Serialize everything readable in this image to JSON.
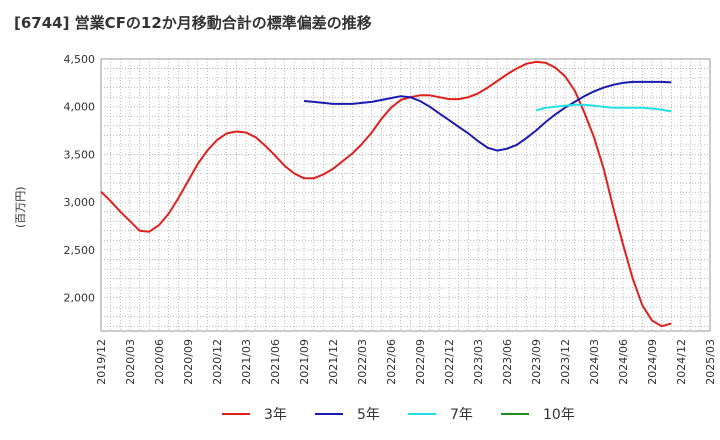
{
  "chart_data": {
    "type": "line",
    "title": "[6744]  営業CFの12か月移動合計の標準偏差の推移",
    "ylabel": "(百万円)",
    "xlabel": "",
    "ylim": [
      1650,
      4500
    ],
    "yticks": [
      2000,
      2500,
      3000,
      3500,
      4000,
      4500
    ],
    "ytick_labels": [
      "2,000",
      "2,500",
      "3,000",
      "3,500",
      "4,000",
      "4,500"
    ],
    "xticks": [
      "2019/12",
      "2020/03",
      "2020/06",
      "2020/09",
      "2020/12",
      "2021/03",
      "2021/06",
      "2021/09",
      "2021/12",
      "2022/03",
      "2022/06",
      "2022/09",
      "2022/12",
      "2023/03",
      "2023/06",
      "2023/09",
      "2023/12",
      "2024/03",
      "2024/06",
      "2024/09",
      "2024/12",
      "2025/03"
    ],
    "grid": true,
    "legend_position": "bottom",
    "series": [
      {
        "name": "3年",
        "color": "#e0201c",
        "points": [
          [
            "2019/12",
            3110
          ],
          [
            "2020/01",
            3010
          ],
          [
            "2020/02",
            2900
          ],
          [
            "2020/03",
            2800
          ],
          [
            "2020/04",
            2700
          ],
          [
            "2020/05",
            2690
          ],
          [
            "2020/06",
            2760
          ],
          [
            "2020/07",
            2880
          ],
          [
            "2020/08",
            3040
          ],
          [
            "2020/09",
            3220
          ],
          [
            "2020/10",
            3400
          ],
          [
            "2020/11",
            3540
          ],
          [
            "2020/12",
            3650
          ],
          [
            "2021/01",
            3720
          ],
          [
            "2021/02",
            3740
          ],
          [
            "2021/03",
            3730
          ],
          [
            "2021/04",
            3680
          ],
          [
            "2021/05",
            3590
          ],
          [
            "2021/06",
            3490
          ],
          [
            "2021/07",
            3380
          ],
          [
            "2021/08",
            3300
          ],
          [
            "2021/09",
            3250
          ],
          [
            "2021/10",
            3250
          ],
          [
            "2021/11",
            3290
          ],
          [
            "2021/12",
            3350
          ],
          [
            "2022/01",
            3430
          ],
          [
            "2022/02",
            3510
          ],
          [
            "2022/03",
            3610
          ],
          [
            "2022/04",
            3730
          ],
          [
            "2022/05",
            3870
          ],
          [
            "2022/06",
            3990
          ],
          [
            "2022/07",
            4070
          ],
          [
            "2022/08",
            4100
          ],
          [
            "2022/09",
            4120
          ],
          [
            "2022/10",
            4120
          ],
          [
            "2022/11",
            4100
          ],
          [
            "2022/12",
            4080
          ],
          [
            "2023/01",
            4080
          ],
          [
            "2023/02",
            4100
          ],
          [
            "2023/03",
            4140
          ],
          [
            "2023/04",
            4200
          ],
          [
            "2023/05",
            4270
          ],
          [
            "2023/06",
            4340
          ],
          [
            "2023/07",
            4400
          ],
          [
            "2023/08",
            4450
          ],
          [
            "2023/09",
            4470
          ],
          [
            "2023/10",
            4460
          ],
          [
            "2023/11",
            4410
          ],
          [
            "2023/12",
            4320
          ],
          [
            "2024/01",
            4170
          ],
          [
            "2024/02",
            3940
          ],
          [
            "2024/03",
            3680
          ],
          [
            "2024/04",
            3350
          ],
          [
            "2024/05",
            2940
          ],
          [
            "2024/06",
            2560
          ],
          [
            "2024/07",
            2200
          ],
          [
            "2024/08",
            1920
          ],
          [
            "2024/09",
            1760
          ],
          [
            "2024/10",
            1700
          ],
          [
            "2024/11",
            1730
          ]
        ]
      },
      {
        "name": "5年",
        "color": "#1a1aaf",
        "points": [
          [
            "2021/09",
            4060
          ],
          [
            "2021/10",
            4050
          ],
          [
            "2021/11",
            4040
          ],
          [
            "2021/12",
            4030
          ],
          [
            "2022/01",
            4030
          ],
          [
            "2022/02",
            4030
          ],
          [
            "2022/03",
            4040
          ],
          [
            "2022/04",
            4050
          ],
          [
            "2022/05",
            4070
          ],
          [
            "2022/06",
            4090
          ],
          [
            "2022/07",
            4110
          ],
          [
            "2022/08",
            4100
          ],
          [
            "2022/09",
            4060
          ],
          [
            "2022/10",
            4000
          ],
          [
            "2022/11",
            3930
          ],
          [
            "2022/12",
            3860
          ],
          [
            "2023/01",
            3790
          ],
          [
            "2023/02",
            3720
          ],
          [
            "2023/03",
            3640
          ],
          [
            "2023/04",
            3570
          ],
          [
            "2023/05",
            3540
          ],
          [
            "2023/06",
            3560
          ],
          [
            "2023/07",
            3600
          ],
          [
            "2023/08",
            3670
          ],
          [
            "2023/09",
            3750
          ],
          [
            "2023/10",
            3840
          ],
          [
            "2023/11",
            3920
          ],
          [
            "2023/12",
            3990
          ],
          [
            "2024/01",
            4050
          ],
          [
            "2024/02",
            4110
          ],
          [
            "2024/03",
            4160
          ],
          [
            "2024/04",
            4200
          ],
          [
            "2024/05",
            4230
          ],
          [
            "2024/06",
            4250
          ],
          [
            "2024/07",
            4260
          ],
          [
            "2024/08",
            4260
          ],
          [
            "2024/09",
            4260
          ],
          [
            "2024/10",
            4260
          ],
          [
            "2024/11",
            4255
          ]
        ]
      },
      {
        "name": "7年",
        "color": "#22e0e6",
        "points": [
          [
            "2023/09",
            3960
          ],
          [
            "2023/10",
            3990
          ],
          [
            "2023/11",
            4000
          ],
          [
            "2023/12",
            4010
          ],
          [
            "2024/01",
            4020
          ],
          [
            "2024/02",
            4020
          ],
          [
            "2024/03",
            4010
          ],
          [
            "2024/04",
            4000
          ],
          [
            "2024/05",
            3990
          ],
          [
            "2024/06",
            3990
          ],
          [
            "2024/07",
            3990
          ],
          [
            "2024/08",
            3990
          ],
          [
            "2024/09",
            3980
          ],
          [
            "2024/10",
            3970
          ],
          [
            "2024/11",
            3950
          ]
        ]
      },
      {
        "name": "10年",
        "color": "#1e8c1e",
        "points": []
      }
    ]
  }
}
